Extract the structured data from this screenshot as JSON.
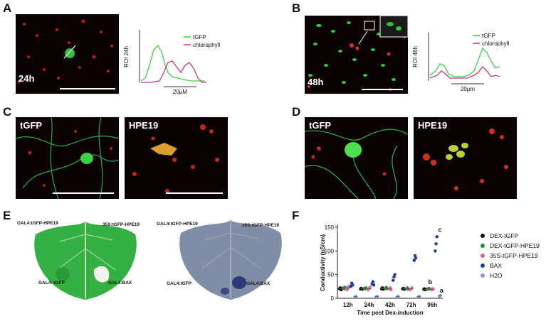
{
  "panels": {
    "A": "A",
    "B": "B",
    "C": "C",
    "D": "D",
    "E": "E",
    "F": "F"
  },
  "panelA": {
    "time_label": "24h",
    "roi_axis_label": "ROI  24h",
    "scale_label": "20μM",
    "legend": [
      "tGFP",
      "chlorophyll"
    ]
  },
  "panelB": {
    "time_label": "48h",
    "roi_axis_label": "ROI  48h",
    "scale_label": "20μm",
    "legend": [
      "tGFP",
      "chlorophyll"
    ]
  },
  "panelC": {
    "left_label": "tGFP",
    "right_label": "HPE19"
  },
  "panelD": {
    "left_label": "tGFP",
    "right_label": "HPE19"
  },
  "panelE": {
    "leaf1": {
      "top_left": "GAL4:tGFP-HPE19",
      "top_right": "35S:tGFP-HPE19",
      "bottom_left": "GAL4: tGFP",
      "bottom_right": "GAL4:BAX"
    },
    "leaf2": {
      "top_left": "GAL4:tGFP-HPE19",
      "top_right": "35S:tGFP-HPE19",
      "bottom_left": "GAL4:tGFP",
      "bottom_right": "GAL4:BAX"
    }
  },
  "colors": {
    "tgfp_line": "#3fcf3f",
    "chlorophyll_line": "#c8387a",
    "DEX-tGFP": "#111111",
    "DEX-tGFP-HPE19": "#2e8b3a",
    "35S-tGFP-HPE19": "#e8609a",
    "BAX": "#1f3a9e",
    "H2O": "#8a9bd0"
  },
  "chart_data": {
    "type": "scatter",
    "xlabel": "Time post Dex-induction",
    "ylabel": "Conductivity (uS/cm)",
    "categories": [
      "12h",
      "24h",
      "42h",
      "72h",
      "96h"
    ],
    "ylim": [
      0,
      150
    ],
    "yticks": [
      0,
      50,
      100,
      150
    ],
    "series": [
      {
        "name": "DEX-tGFP",
        "values": [
          [
            20,
            22,
            18
          ],
          [
            20,
            21,
            19
          ],
          [
            20,
            22,
            19
          ],
          [
            20,
            21,
            19
          ],
          [
            19,
            20,
            18
          ]
        ]
      },
      {
        "name": "DEX-tGFP-HPE19",
        "values": [
          [
            22,
            20,
            23
          ],
          [
            21,
            20,
            22
          ],
          [
            21,
            23,
            20
          ],
          [
            20,
            22,
            19
          ],
          [
            20,
            19,
            21
          ]
        ]
      },
      {
        "name": "35S-tGFP-HPE19",
        "values": [
          [
            18,
            22,
            25
          ],
          [
            18,
            20,
            23
          ],
          [
            20,
            22,
            18
          ],
          [
            18,
            20,
            22
          ],
          [
            18,
            20,
            19
          ]
        ]
      },
      {
        "name": "BAX",
        "values": [
          [
            25,
            32,
            28
          ],
          [
            30,
            35,
            28
          ],
          [
            38,
            45,
            50
          ],
          [
            80,
            90,
            85
          ],
          [
            100,
            115,
            130
          ]
        ]
      },
      {
        "name": "H2O",
        "values": [
          [
            3,
            4
          ],
          [
            3,
            4
          ],
          [
            3,
            4
          ],
          [
            3,
            4
          ],
          [
            4,
            6
          ]
        ]
      }
    ],
    "annotations": [
      {
        "text": "c",
        "category": "96h",
        "y": 140
      },
      {
        "text": "b",
        "category": "96h",
        "y": 30
      },
      {
        "text": "a",
        "category": "96h",
        "y": 12
      }
    ]
  }
}
